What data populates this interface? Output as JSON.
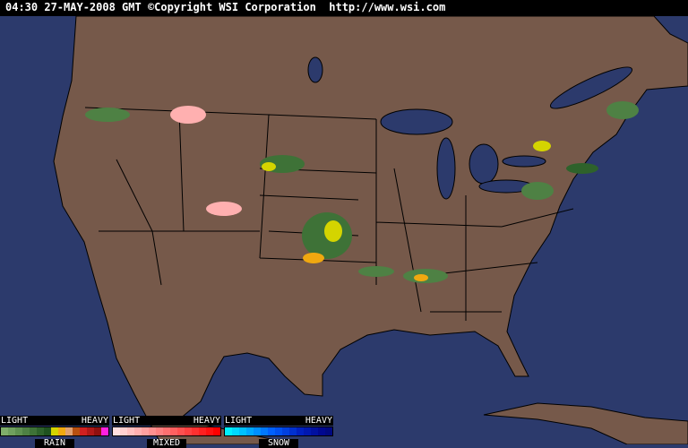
{
  "header": {
    "timestamp": "04:30 27-MAY-2008 GMT",
    "copyright": "©Copyright WSI Corporation",
    "url": "http://www.wsi.com"
  },
  "colors": {
    "ocean": "#2c3a6c",
    "land": "#76594a",
    "border": "#000000"
  },
  "legend": [
    {
      "name": "RAIN",
      "light": "LIGHT",
      "heavy": "HEAVY",
      "colors": [
        "#7fae6b",
        "#6fa05e",
        "#5e9150",
        "#4e8144",
        "#3e7237",
        "#2e622b",
        "#1f521f",
        "#d4d400",
        "#f0a810",
        "#e0a070",
        "#b85010",
        "#d02020",
        "#b01818",
        "#901010",
        "#ff20e0"
      ]
    },
    {
      "name": "MIXED",
      "light": "LIGHT",
      "heavy": "HEAVY",
      "colors": [
        "#ffe0e0",
        "#ffd0d0",
        "#ffc0c0",
        "#ffb0b0",
        "#ffa0a0",
        "#ff9090",
        "#ff8080",
        "#ff7070",
        "#ff6060",
        "#ff5050",
        "#ff4040",
        "#ff3030",
        "#ff2020",
        "#ff1010",
        "#ff0000"
      ]
    },
    {
      "name": "SNOW",
      "light": "LIGHT",
      "heavy": "HEAVY",
      "colors": [
        "#00f0ff",
        "#00d8ff",
        "#00c0ff",
        "#00a8ff",
        "#0090ff",
        "#0078ff",
        "#0060ff",
        "#0050f0",
        "#0040e0",
        "#0030d0",
        "#0020c0",
        "#0018b0",
        "#0010a0",
        "#000890",
        "#000880"
      ]
    }
  ]
}
